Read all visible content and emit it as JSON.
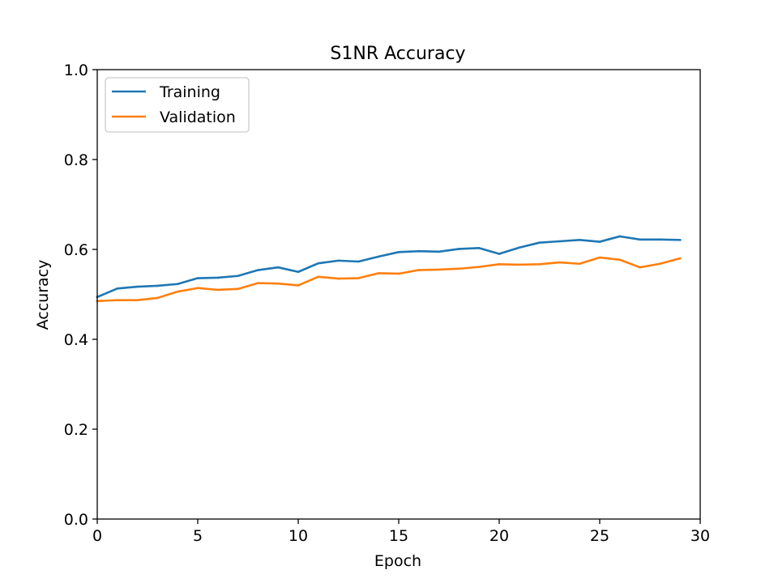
{
  "chart_data": {
    "type": "line",
    "title": "S1NR Accuracy",
    "xlabel": "Epoch",
    "ylabel": "Accuracy",
    "xlim": [
      0,
      30
    ],
    "ylim": [
      0,
      1.0
    ],
    "x_ticks": [
      "0",
      "5",
      "10",
      "15",
      "20",
      "25",
      "30"
    ],
    "y_ticks": [
      "0.0",
      "0.2",
      "0.4",
      "0.6",
      "0.8",
      "1.0"
    ],
    "grid": false,
    "legend_position": "top-left",
    "x": [
      0,
      1,
      2,
      3,
      4,
      5,
      6,
      7,
      8,
      9,
      10,
      11,
      12,
      13,
      14,
      15,
      16,
      17,
      18,
      19,
      20,
      21,
      22,
      23,
      24,
      25,
      26,
      27,
      28,
      29
    ],
    "series": [
      {
        "name": "Training",
        "color": "#1f77b4",
        "values": [
          0.494,
          0.513,
          0.517,
          0.519,
          0.523,
          0.536,
          0.537,
          0.541,
          0.554,
          0.56,
          0.55,
          0.569,
          0.575,
          0.573,
          0.584,
          0.594,
          0.596,
          0.595,
          0.601,
          0.603,
          0.59,
          0.604,
          0.615,
          0.618,
          0.621,
          0.617,
          0.629,
          0.622,
          0.622,
          0.621
        ]
      },
      {
        "name": "Validation",
        "color": "#ff7f0e",
        "values": [
          0.485,
          0.487,
          0.487,
          0.492,
          0.506,
          0.514,
          0.51,
          0.512,
          0.525,
          0.524,
          0.52,
          0.539,
          0.535,
          0.536,
          0.547,
          0.546,
          0.554,
          0.555,
          0.557,
          0.561,
          0.567,
          0.566,
          0.567,
          0.571,
          0.568,
          0.582,
          0.577,
          0.56,
          0.568,
          0.58
        ]
      }
    ]
  }
}
